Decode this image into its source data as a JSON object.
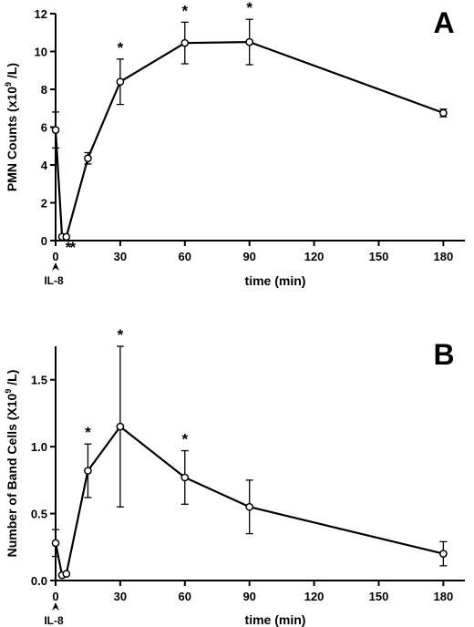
{
  "chart_data": [
    {
      "type": "line",
      "panel_label": "A",
      "ylabel": "PMN Counts (x10",
      "ylabel_sup": "9",
      "ylabel_tail": " /L)",
      "xlabel": "time  (min)",
      "marker_label": "IL-8",
      "xlim": [
        0,
        190
      ],
      "ylim": [
        0,
        12
      ],
      "x_ticks": [
        0,
        30,
        60,
        90,
        120,
        150,
        180
      ],
      "y_ticks": [
        0,
        2,
        4,
        6,
        8,
        10,
        12
      ],
      "y_tick_labels": [
        "0",
        "2",
        "4",
        "6",
        "8",
        "10",
        "12"
      ],
      "points": [
        {
          "x": 0,
          "y": 5.85,
          "err": 0.95,
          "mark": ""
        },
        {
          "x": 3,
          "y": 0.2,
          "err": 0.0,
          "mark": "*"
        },
        {
          "x": 5,
          "y": 0.2,
          "err": 0.0,
          "mark": "*"
        },
        {
          "x": 15,
          "y": 4.35,
          "err": 0.3,
          "mark": ""
        },
        {
          "x": 30,
          "y": 8.4,
          "err": 1.2,
          "mark": "*"
        },
        {
          "x": 60,
          "y": 10.45,
          "err": 1.1,
          "mark": "*"
        },
        {
          "x": 90,
          "y": 10.5,
          "err": 1.2,
          "mark": "*"
        },
        {
          "x": 180,
          "y": 6.75,
          "err": 0.2,
          "mark": ""
        }
      ]
    },
    {
      "type": "line",
      "panel_label": "B",
      "ylabel": "Number of Band Cells (X10",
      "ylabel_sup": "9",
      "ylabel_tail": " /L)",
      "xlabel": "time  (min)",
      "marker_label": "IL-8",
      "xlim": [
        0,
        190
      ],
      "ylim": [
        0,
        1.75
      ],
      "x_ticks": [
        0,
        30,
        60,
        90,
        120,
        150,
        180
      ],
      "y_ticks": [
        0,
        0.5,
        1.0,
        1.5
      ],
      "y_tick_labels": [
        "0.0",
        "0.5",
        "1.0",
        "1.5"
      ],
      "points": [
        {
          "x": 0,
          "y": 0.28,
          "err": 0.1,
          "mark": ""
        },
        {
          "x": 3,
          "y": 0.04,
          "err": 0.0,
          "mark": ""
        },
        {
          "x": 5,
          "y": 0.05,
          "err": 0.0,
          "mark": ""
        },
        {
          "x": 15,
          "y": 0.82,
          "err": 0.2,
          "mark": "*"
        },
        {
          "x": 30,
          "y": 1.15,
          "err": 0.6,
          "mark": "*"
        },
        {
          "x": 60,
          "y": 0.77,
          "err": 0.2,
          "mark": "*"
        },
        {
          "x": 90,
          "y": 0.55,
          "err": 0.2,
          "mark": ""
        },
        {
          "x": 180,
          "y": 0.2,
          "err": 0.09,
          "mark": ""
        }
      ]
    }
  ]
}
